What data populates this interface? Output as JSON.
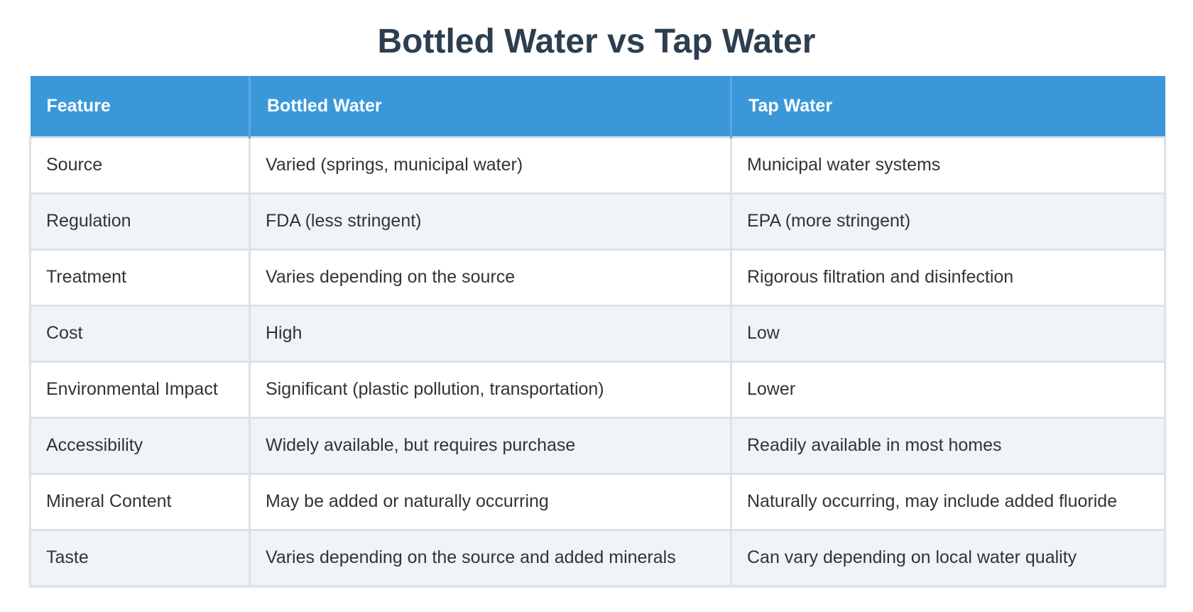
{
  "title": "Bottled Water vs Tap Water",
  "colors": {
    "title": "#2c3e50",
    "header_bg": "#3a98d9",
    "header_text": "#ffffff",
    "row_alt_bg": "#f0f4f9",
    "border": "#dde2e7"
  },
  "table": {
    "headers": [
      "Feature",
      "Bottled Water",
      "Tap Water"
    ],
    "rows": [
      [
        "Source",
        "Varied (springs, municipal water)",
        "Municipal water systems"
      ],
      [
        "Regulation",
        "FDA (less stringent)",
        "EPA (more stringent)"
      ],
      [
        "Treatment",
        "Varies depending on the source",
        "Rigorous filtration and disinfection"
      ],
      [
        "Cost",
        "High",
        "Low"
      ],
      [
        "Environmental Impact",
        "Significant (plastic pollution, transportation)",
        "Lower"
      ],
      [
        "Accessibility",
        "Widely available, but requires purchase",
        "Readily available in most homes"
      ],
      [
        "Mineral Content",
        "May be added or naturally occurring",
        "Naturally occurring, may include added fluoride"
      ],
      [
        "Taste",
        "Varies depending on the source and added minerals",
        "Can vary depending on local water quality"
      ]
    ]
  }
}
